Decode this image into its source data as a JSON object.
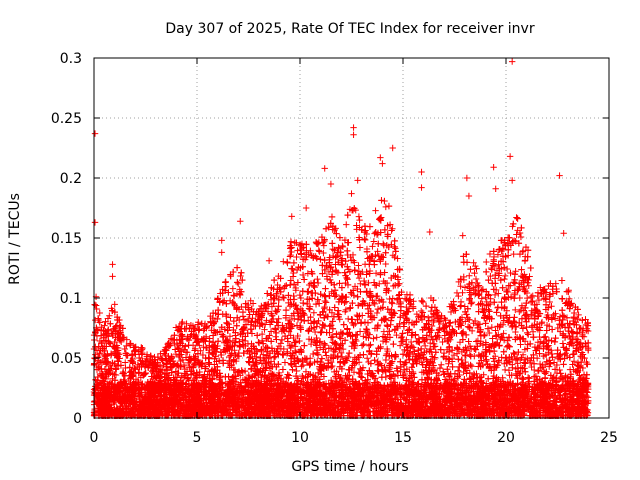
{
  "chart_data": {
    "type": "scatter",
    "title": "Day 307 of 2025, Rate Of TEC Index for receiver invr",
    "xlabel": "GPS time / hours",
    "ylabel": "ROTI / TECUs",
    "xlim": [
      0,
      25
    ],
    "ylim": [
      0,
      0.3
    ],
    "x_ticks": [
      0,
      5,
      10,
      15,
      20,
      25
    ],
    "x_tick_labels": [
      "0",
      "5",
      "10",
      "15",
      "20",
      "25"
    ],
    "y_ticks": [
      0,
      0.05,
      0.1,
      0.15,
      0.2,
      0.25,
      0.3
    ],
    "y_tick_labels": [
      "0",
      "0.05",
      "0.1",
      "0.15",
      "0.2",
      "0.25",
      "0.3"
    ],
    "grid": true,
    "marker": "plus",
    "color": "#ff0000",
    "x_range_of_data": [
      0,
      24
    ],
    "envelope": [
      [
        0.0,
        0.1
      ],
      [
        0.5,
        0.08
      ],
      [
        1.0,
        0.1
      ],
      [
        1.5,
        0.07
      ],
      [
        2.0,
        0.06
      ],
      [
        2.5,
        0.06
      ],
      [
        3.0,
        0.05
      ],
      [
        3.5,
        0.06
      ],
      [
        4.0,
        0.08
      ],
      [
        4.5,
        0.08
      ],
      [
        5.0,
        0.08
      ],
      [
        5.5,
        0.08
      ],
      [
        6.0,
        0.1
      ],
      [
        6.5,
        0.12
      ],
      [
        7.0,
        0.13
      ],
      [
        7.5,
        0.1
      ],
      [
        8.0,
        0.09
      ],
      [
        8.5,
        0.11
      ],
      [
        9.0,
        0.12
      ],
      [
        9.5,
        0.15
      ],
      [
        10.0,
        0.15
      ],
      [
        10.5,
        0.15
      ],
      [
        11.0,
        0.15
      ],
      [
        11.5,
        0.17
      ],
      [
        12.0,
        0.15
      ],
      [
        12.5,
        0.19
      ],
      [
        13.0,
        0.16
      ],
      [
        13.5,
        0.17
      ],
      [
        14.0,
        0.19
      ],
      [
        14.5,
        0.17
      ],
      [
        15.0,
        0.12
      ],
      [
        15.5,
        0.1
      ],
      [
        16.0,
        0.1
      ],
      [
        16.5,
        0.1
      ],
      [
        17.0,
        0.09
      ],
      [
        17.5,
        0.1
      ],
      [
        18.0,
        0.14
      ],
      [
        18.5,
        0.13
      ],
      [
        19.0,
        0.13
      ],
      [
        19.5,
        0.15
      ],
      [
        20.0,
        0.15
      ],
      [
        20.5,
        0.17
      ],
      [
        21.0,
        0.15
      ],
      [
        21.5,
        0.11
      ],
      [
        22.0,
        0.11
      ],
      [
        22.5,
        0.12
      ],
      [
        23.0,
        0.11
      ],
      [
        23.5,
        0.09
      ],
      [
        24.0,
        0.08
      ]
    ],
    "outliers": [
      {
        "x": 0.05,
        "y": 0.237
      },
      {
        "x": 0.05,
        "y": 0.163
      },
      {
        "x": 0.1,
        "y": 0.101
      },
      {
        "x": 0.9,
        "y": 0.128
      },
      {
        "x": 0.9,
        "y": 0.118
      },
      {
        "x": 6.2,
        "y": 0.148
      },
      {
        "x": 6.2,
        "y": 0.138
      },
      {
        "x": 7.1,
        "y": 0.164
      },
      {
        "x": 8.5,
        "y": 0.131
      },
      {
        "x": 9.6,
        "y": 0.168
      },
      {
        "x": 11.2,
        "y": 0.208
      },
      {
        "x": 11.5,
        "y": 0.195
      },
      {
        "x": 12.6,
        "y": 0.242
      },
      {
        "x": 12.6,
        "y": 0.236
      },
      {
        "x": 12.8,
        "y": 0.198
      },
      {
        "x": 12.5,
        "y": 0.187
      },
      {
        "x": 13.9,
        "y": 0.217
      },
      {
        "x": 14.0,
        "y": 0.212
      },
      {
        "x": 14.5,
        "y": 0.225
      },
      {
        "x": 15.9,
        "y": 0.205
      },
      {
        "x": 15.9,
        "y": 0.192
      },
      {
        "x": 18.1,
        "y": 0.2
      },
      {
        "x": 18.2,
        "y": 0.185
      },
      {
        "x": 19.4,
        "y": 0.209
      },
      {
        "x": 19.5,
        "y": 0.191
      },
      {
        "x": 20.2,
        "y": 0.218
      },
      {
        "x": 20.3,
        "y": 0.198
      },
      {
        "x": 20.3,
        "y": 0.297
      },
      {
        "x": 22.6,
        "y": 0.202
      },
      {
        "x": 22.8,
        "y": 0.154
      },
      {
        "x": 17.9,
        "y": 0.152
      },
      {
        "x": 16.3,
        "y": 0.155
      },
      {
        "x": 10.3,
        "y": 0.175
      }
    ]
  }
}
